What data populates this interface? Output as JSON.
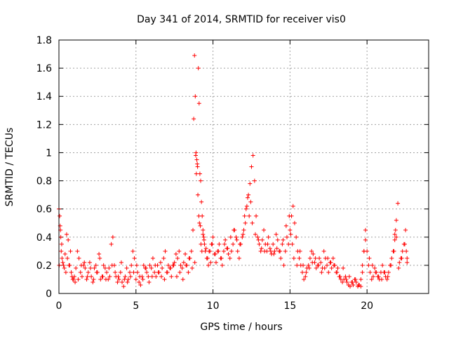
{
  "chart_data": {
    "type": "scatter",
    "title": "Day 341 of 2014, SRMTID for receiver vis0",
    "xlabel": "GPS time / hours",
    "ylabel": "SRMTID / TECUs",
    "xlim": [
      0,
      24
    ],
    "ylim": [
      0,
      1.8
    ],
    "xticks": [
      0,
      5,
      10,
      15,
      20
    ],
    "xtick_labels": [
      "0",
      "5",
      "10",
      "15",
      "20"
    ],
    "yticks": [
      0,
      0.2,
      0.4,
      0.6,
      0.8,
      1,
      1.2,
      1.4,
      1.6,
      1.8
    ],
    "ytick_labels": [
      "0",
      "0.2",
      "0.4",
      "0.6",
      "0.8",
      "1",
      "1.2",
      "1.4",
      "1.6",
      "1.8"
    ],
    "grid": true,
    "marker": "+",
    "series": [
      {
        "name": "SRMTID vis0",
        "color": "#ff0000",
        "x": [
          0.0,
          0.05,
          0.1,
          0.15,
          0.2,
          0.3,
          0.4,
          0.5,
          0.6,
          0.7,
          0.8,
          0.9,
          1.0,
          1.1,
          1.2,
          1.3,
          1.4,
          1.5,
          1.6,
          1.7,
          1.8,
          1.9,
          2.0,
          2.1,
          2.2,
          2.3,
          2.4,
          2.5,
          2.6,
          2.7,
          2.8,
          2.9,
          3.0,
          3.1,
          3.2,
          3.3,
          3.4,
          3.5,
          3.6,
          3.7,
          3.8,
          3.9,
          4.0,
          4.1,
          4.2,
          4.3,
          4.4,
          4.5,
          4.6,
          4.7,
          4.8,
          4.9,
          5.0,
          5.1,
          5.2,
          5.3,
          5.4,
          5.5,
          5.6,
          5.7,
          5.8,
          5.9,
          6.0,
          6.1,
          6.2,
          6.3,
          6.4,
          6.5,
          6.6,
          6.7,
          6.8,
          6.9,
          7.0,
          7.1,
          7.2,
          7.3,
          7.4,
          7.5,
          7.6,
          7.7,
          7.8,
          7.9,
          8.0,
          8.1,
          8.2,
          8.3,
          8.4,
          8.5,
          8.6,
          8.7,
          8.75,
          8.8,
          8.85,
          8.9,
          8.95,
          9.0,
          9.05,
          9.1,
          9.15,
          9.2,
          9.25,
          9.3,
          9.35,
          9.4,
          9.45,
          9.5,
          9.6,
          9.7,
          9.8,
          9.9,
          10.0,
          10.1,
          10.2,
          10.3,
          10.4,
          10.5,
          10.6,
          10.7,
          10.8,
          10.9,
          11.0,
          11.1,
          11.2,
          11.3,
          11.4,
          11.5,
          11.6,
          11.7,
          11.8,
          11.9,
          12.0,
          12.1,
          12.2,
          12.3,
          12.4,
          12.5,
          12.6,
          12.7,
          12.8,
          12.9,
          13.0,
          13.1,
          13.2,
          13.3,
          13.4,
          13.5,
          13.6,
          13.7,
          13.8,
          13.9,
          14.0,
          14.1,
          14.2,
          14.3,
          14.4,
          14.5,
          14.6,
          14.7,
          14.8,
          14.9,
          15.0,
          15.1,
          15.2,
          15.3,
          15.4,
          15.5,
          15.6,
          15.7,
          15.8,
          15.9,
          16.0,
          16.1,
          16.2,
          16.3,
          16.4,
          16.5,
          16.6,
          16.7,
          16.8,
          16.9,
          17.0,
          17.1,
          17.2,
          17.3,
          17.4,
          17.5,
          17.6,
          17.7,
          17.8,
          17.9,
          18.0,
          18.1,
          18.2,
          18.3,
          18.4,
          18.5,
          18.6,
          18.7,
          18.8,
          18.9,
          19.0,
          19.1,
          19.2,
          19.3,
          19.4,
          19.5,
          19.6,
          19.7,
          19.8,
          19.9,
          20.0,
          20.1,
          20.2,
          20.3,
          20.4,
          20.5,
          20.6,
          20.7,
          20.8,
          20.9,
          21.0,
          21.1,
          21.2,
          21.3,
          21.4,
          21.5,
          21.6,
          21.7,
          21.8,
          21.9,
          22.0,
          22.1,
          22.2,
          22.3,
          22.4,
          22.5,
          22.6,
          0.02,
          0.08,
          0.12,
          0.18,
          0.25,
          0.35,
          0.45,
          0.55,
          0.65,
          0.75,
          0.85,
          0.95,
          1.05,
          1.25,
          1.45,
          1.65,
          1.85,
          2.05,
          2.25,
          2.45,
          2.65,
          2.85,
          3.05,
          3.25,
          3.45,
          3.65,
          3.85,
          4.05,
          4.25,
          4.45,
          4.65,
          4.85,
          5.05,
          5.25,
          5.45,
          5.65,
          5.85,
          6.05,
          6.25,
          6.45,
          6.65,
          6.85,
          7.05,
          7.25,
          7.45,
          7.65,
          7.85,
          8.05,
          8.25,
          8.45,
          8.65,
          8.82,
          8.88,
          8.92,
          8.98,
          9.02,
          9.08,
          9.12,
          9.18,
          9.22,
          9.28,
          9.35,
          9.42,
          9.55,
          9.65,
          9.75,
          9.85,
          9.95,
          10.15,
          10.35,
          10.55,
          10.75,
          10.95,
          11.15,
          11.35,
          11.55,
          11.75,
          11.95,
          12.05,
          12.15,
          12.25,
          12.35,
          12.45,
          12.55,
          12.75,
          12.95,
          13.15,
          13.35,
          13.55,
          13.75,
          13.95,
          14.15,
          14.35,
          14.55,
          14.75,
          14.95,
          15.05,
          15.15,
          15.25,
          15.45,
          15.65,
          15.85,
          16.05,
          16.25,
          16.45,
          16.65,
          16.85,
          17.05,
          17.25,
          17.45,
          17.65,
          17.85,
          18.05,
          18.25,
          18.45,
          18.65,
          18.85,
          19.05,
          19.25,
          19.45,
          19.6,
          19.7,
          19.8,
          19.9,
          20.15,
          20.35,
          20.55,
          20.75,
          20.95,
          21.15,
          21.35,
          21.55,
          21.75,
          21.8,
          21.85,
          21.9,
          22.05,
          22.25,
          22.45,
          22.55,
          22.6
        ],
        "y": [
          0.6,
          0.55,
          0.45,
          0.3,
          0.25,
          0.2,
          0.28,
          0.42,
          0.38,
          0.2,
          0.15,
          0.1,
          0.12,
          0.18,
          0.3,
          0.25,
          0.15,
          0.12,
          0.2,
          0.18,
          0.1,
          0.15,
          0.22,
          0.12,
          0.08,
          0.18,
          0.2,
          0.15,
          0.28,
          0.1,
          0.12,
          0.2,
          0.18,
          0.15,
          0.1,
          0.12,
          0.35,
          0.4,
          0.2,
          0.12,
          0.08,
          0.1,
          0.15,
          0.08,
          0.05,
          0.12,
          0.18,
          0.1,
          0.15,
          0.2,
          0.3,
          0.25,
          0.1,
          0.15,
          0.08,
          0.06,
          0.12,
          0.2,
          0.18,
          0.15,
          0.12,
          0.2,
          0.18,
          0.25,
          0.15,
          0.12,
          0.2,
          0.15,
          0.22,
          0.18,
          0.25,
          0.3,
          0.15,
          0.2,
          0.18,
          0.12,
          0.2,
          0.22,
          0.28,
          0.25,
          0.3,
          0.2,
          0.18,
          0.22,
          0.28,
          0.2,
          0.15,
          0.25,
          0.3,
          0.45,
          1.24,
          1.69,
          1.4,
          1.0,
          0.95,
          0.9,
          1.6,
          1.35,
          0.85,
          0.8,
          0.65,
          0.55,
          0.45,
          0.4,
          0.35,
          0.3,
          0.25,
          0.2,
          0.3,
          0.35,
          0.4,
          0.28,
          0.22,
          0.3,
          0.35,
          0.25,
          0.2,
          0.3,
          0.38,
          0.32,
          0.28,
          0.25,
          0.3,
          0.35,
          0.45,
          0.4,
          0.3,
          0.25,
          0.35,
          0.4,
          0.45,
          0.5,
          0.62,
          0.7,
          0.78,
          0.9,
          0.98,
          0.8,
          0.55,
          0.4,
          0.35,
          0.3,
          0.38,
          0.45,
          0.35,
          0.3,
          0.4,
          0.32,
          0.28,
          0.35,
          0.3,
          0.42,
          0.38,
          0.3,
          0.25,
          0.35,
          0.2,
          0.3,
          0.4,
          0.35,
          0.45,
          0.55,
          0.62,
          0.5,
          0.4,
          0.3,
          0.25,
          0.2,
          0.15,
          0.1,
          0.12,
          0.18,
          0.2,
          0.25,
          0.3,
          0.28,
          0.22,
          0.18,
          0.2,
          0.25,
          0.22,
          0.18,
          0.3,
          0.25,
          0.2,
          0.15,
          0.22,
          0.18,
          0.25,
          0.2,
          0.15,
          0.18,
          0.12,
          0.1,
          0.08,
          0.1,
          0.12,
          0.08,
          0.06,
          0.05,
          0.08,
          0.06,
          0.1,
          0.08,
          0.05,
          0.06,
          0.1,
          0.2,
          0.3,
          0.45,
          0.3,
          0.2,
          0.15,
          0.1,
          0.12,
          0.18,
          0.15,
          0.12,
          0.1,
          0.15,
          0.2,
          0.15,
          0.12,
          0.1,
          0.15,
          0.2,
          0.25,
          0.3,
          0.42,
          0.52,
          0.64,
          0.22,
          0.25,
          0.3,
          0.35,
          0.45,
          0.25,
          0.2,
          0.48,
          0.4,
          0.35,
          0.22,
          0.18,
          0.15,
          0.25,
          0.2,
          0.3,
          0.12,
          0.1,
          0.08,
          0.1,
          0.2,
          0.22,
          0.12,
          0.18,
          0.1,
          0.15,
          0.25,
          0.12,
          0.1,
          0.18,
          0.2,
          0.15,
          0.12,
          0.22,
          0.1,
          0.08,
          0.12,
          0.15,
          0.2,
          0.12,
          0.1,
          0.18,
          0.08,
          0.12,
          0.2,
          0.15,
          0.12,
          0.1,
          0.15,
          0.18,
          0.2,
          0.12,
          0.15,
          0.1,
          0.2,
          0.25,
          0.18,
          0.22,
          0.98,
          0.85,
          0.92,
          0.7,
          0.55,
          0.5,
          0.48,
          0.35,
          0.3,
          0.42,
          0.38,
          0.32,
          0.25,
          0.3,
          0.22,
          0.35,
          0.28,
          0.3,
          0.25,
          0.35,
          0.32,
          0.4,
          0.45,
          0.38,
          0.35,
          0.42,
          0.55,
          0.6,
          0.68,
          0.55,
          0.65,
          0.5,
          0.42,
          0.38,
          0.32,
          0.3,
          0.35,
          0.3,
          0.28,
          0.32,
          0.3,
          0.38,
          0.48,
          0.55,
          0.42,
          0.35,
          0.25,
          0.2,
          0.3,
          0.2,
          0.15,
          0.18,
          0.22,
          0.25,
          0.2,
          0.15,
          0.18,
          0.25,
          0.22,
          0.2,
          0.15,
          0.12,
          0.18,
          0.1,
          0.12,
          0.08,
          0.1,
          0.06,
          0.05,
          0.15,
          0.3,
          0.38,
          0.25,
          0.2,
          0.15,
          0.12,
          0.1,
          0.15,
          0.12,
          0.2,
          0.3,
          0.38,
          0.45,
          0.4,
          0.18,
          0.25,
          0.35,
          0.3,
          0.22
        ]
      }
    ]
  }
}
